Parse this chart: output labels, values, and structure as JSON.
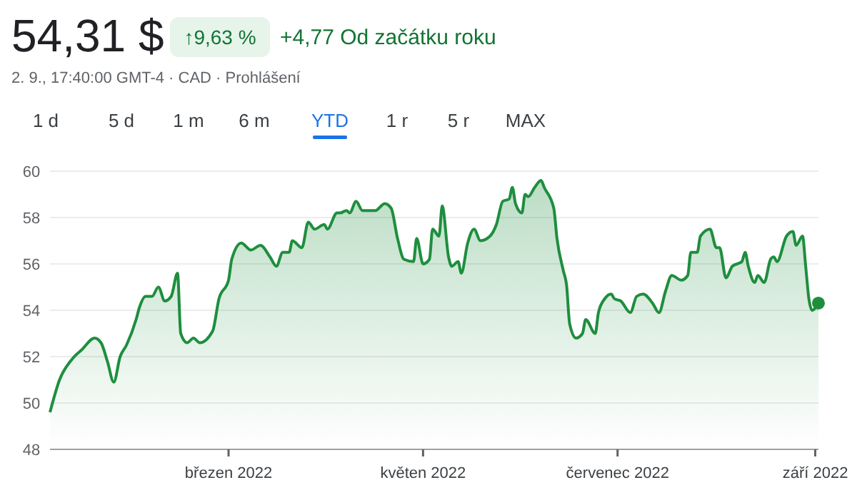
{
  "chart_data": {
    "type": "area",
    "title": "54,31 $",
    "subtitle": "2. 9., 17:40:00 GMT-4 · CAD · Prohlášení",
    "annotations": [
      "↑9,63 %",
      "+4,77 Od začátku roku",
      "1 d",
      "5 d",
      "1 m",
      "6 m",
      "YTD",
      "1 r",
      "5 r",
      "MAX"
    ],
    "x": [
      "2022-01-04",
      "2022-01-07",
      "2022-01-11",
      "2022-01-14",
      "2022-01-18",
      "2022-01-20",
      "2022-01-22",
      "2022-01-24",
      "2022-01-26",
      "2022-01-28",
      "2022-01-31",
      "2022-02-01",
      "2022-02-03",
      "2022-02-05",
      "2022-02-07",
      "2022-02-09",
      "2022-02-11",
      "2022-02-13",
      "2022-02-14",
      "2022-02-16",
      "2022-02-18",
      "2022-02-20",
      "2022-02-24",
      "2022-02-26",
      "2022-03-01",
      "2022-03-02",
      "2022-03-05",
      "2022-03-08",
      "2022-03-11",
      "2022-03-14",
      "2022-03-16",
      "2022-03-18",
      "2022-03-20",
      "2022-03-21",
      "2022-03-24",
      "2022-03-26",
      "2022-03-28",
      "2022-03-31",
      "2022-04-01",
      "2022-04-04",
      "2022-04-05",
      "2022-04-07",
      "2022-04-08",
      "2022-04-10",
      "2022-04-12",
      "2022-04-16",
      "2022-04-19",
      "2022-04-21",
      "2022-04-23",
      "2022-04-25",
      "2022-04-28",
      "2022-04-29",
      "2022-05-01",
      "2022-05-03",
      "2022-05-04",
      "2022-05-06",
      "2022-05-07",
      "2022-05-09",
      "2022-05-10",
      "2022-05-12",
      "2022-05-13",
      "2022-05-15",
      "2022-05-17",
      "2022-05-19",
      "2022-05-22",
      "2022-05-24",
      "2022-05-26",
      "2022-05-28",
      "2022-05-29",
      "2022-05-30",
      "2022-06-01",
      "2022-06-02",
      "2022-06-03",
      "2022-06-05",
      "2022-06-07",
      "2022-06-08",
      "2022-06-11",
      "2022-06-12",
      "2022-06-14",
      "2022-06-15",
      "2022-06-16",
      "2022-06-18",
      "2022-06-20",
      "2022-06-21",
      "2022-06-24",
      "2022-06-25",
      "2022-06-27",
      "2022-06-29",
      "2022-06-30",
      "2022-07-02",
      "2022-07-05",
      "2022-07-07",
      "2022-07-09",
      "2022-07-12",
      "2022-07-14",
      "2022-07-16",
      "2022-07-18",
      "2022-07-21",
      "2022-07-23",
      "2022-07-24",
      "2022-07-26",
      "2022-07-27",
      "2022-07-30",
      "2022-08-01",
      "2022-08-02",
      "2022-08-04",
      "2022-08-06",
      "2022-08-09",
      "2022-08-10",
      "2022-08-11",
      "2022-08-13",
      "2022-08-14",
      "2022-08-16",
      "2022-08-18",
      "2022-08-19",
      "2022-08-20",
      "2022-08-23",
      "2022-08-25",
      "2022-08-26",
      "2022-08-28",
      "2022-08-29",
      "2022-08-30",
      "2022-08-31",
      "2022-09-02"
    ],
    "series": [
      {
        "color": "#1e8e3e",
        "values": [
          49.6,
          51.0,
          51.9,
          52.3,
          52.8,
          52.6,
          51.8,
          50.9,
          52.0,
          52.5,
          53.6,
          54.1,
          54.6,
          54.6,
          55.0,
          54.4,
          54.6,
          55.6,
          53.0,
          52.6,
          52.8,
          52.6,
          53.1,
          54.5,
          55.3,
          56.2,
          56.9,
          56.6,
          56.8,
          56.3,
          55.9,
          56.5,
          56.5,
          57.0,
          56.7,
          57.8,
          57.5,
          57.7,
          57.5,
          58.2,
          58.2,
          58.3,
          58.2,
          58.7,
          58.3,
          58.3,
          58.6,
          58.4,
          57.1,
          56.2,
          56.1,
          57.1,
          56.0,
          56.2,
          57.5,
          57.2,
          58.5,
          56.3,
          55.9,
          56.1,
          55.6,
          56.9,
          57.5,
          57.0,
          57.2,
          57.7,
          58.7,
          58.8,
          59.3,
          58.6,
          58.2,
          59.0,
          58.9,
          59.3,
          59.6,
          59.3,
          58.4,
          57.1,
          55.7,
          55.1,
          53.4,
          52.8,
          53.0,
          53.6,
          53.0,
          53.9,
          54.5,
          54.7,
          54.5,
          54.4,
          53.9,
          54.6,
          54.7,
          54.3,
          53.9,
          54.8,
          55.5,
          55.3,
          55.5,
          56.5,
          56.5,
          57.2,
          57.5,
          56.7,
          56.7,
          55.4,
          55.9,
          56.1,
          56.5,
          55.9,
          55.2,
          55.5,
          55.2,
          56.2,
          56.3,
          56.1,
          57.2,
          57.4,
          56.8,
          57.2,
          55.9,
          54.5,
          54.0,
          54.31
        ]
      }
    ],
    "xlim": [
      "2022-01-04",
      "2022-09-02"
    ],
    "xticks": [
      {
        "value": "2022-03-01",
        "label": "březen 2022"
      },
      {
        "value": "2022-05-01",
        "label": "květen 2022"
      },
      {
        "value": "2022-07-01",
        "label": "červenec 2022"
      },
      {
        "value": "2022-09-01",
        "label": "září 2022"
      }
    ],
    "ylim": [
      48,
      60
    ],
    "yticks": [
      48,
      50,
      52,
      54,
      56,
      58,
      60
    ],
    "grid": "y"
  }
}
